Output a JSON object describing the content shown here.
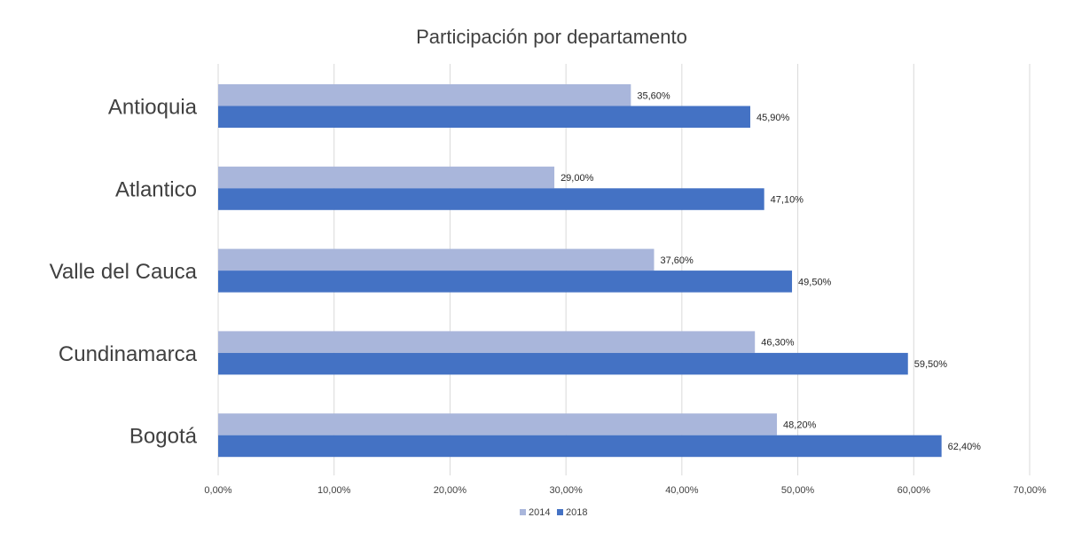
{
  "chart_data": {
    "type": "bar",
    "orientation": "horizontal",
    "title": "Participación por departamento",
    "categories": [
      "Antioquia",
      "Atlantico",
      "Valle del Cauca",
      "Cundinamarca",
      "Bogotá"
    ],
    "series": [
      {
        "name": "2014",
        "color": "#A9B6DB",
        "values": [
          35.6,
          29.0,
          37.6,
          46.3,
          48.2
        ],
        "labels": [
          "35,60%",
          "29,00%",
          "37,60%",
          "46,30%",
          "48,20%"
        ]
      },
      {
        "name": "2018",
        "color": "#4472C4",
        "values": [
          45.9,
          47.1,
          49.5,
          59.5,
          62.4
        ],
        "labels": [
          "45,90%",
          "47,10%",
          "49,50%",
          "59,50%",
          "62,40%"
        ]
      }
    ],
    "xlim": [
      0,
      70
    ],
    "xticks": [
      0,
      10,
      20,
      30,
      40,
      50,
      60,
      70
    ],
    "xtick_labels": [
      "0,00%",
      "10,00%",
      "20,00%",
      "30,00%",
      "40,00%",
      "50,00%",
      "60,00%",
      "70,00%"
    ],
    "grid": true,
    "legend_position": "bottom"
  }
}
